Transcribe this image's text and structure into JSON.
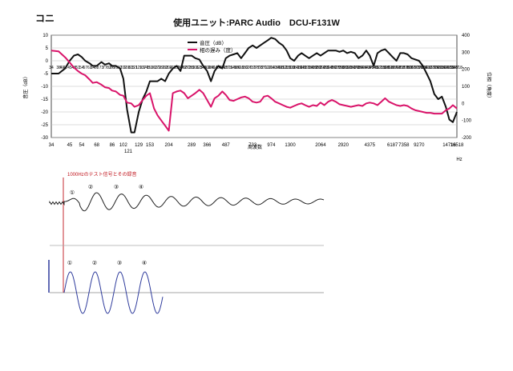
{
  "header": {
    "corner_label": "コニ",
    "title": "使用ユニット:PARC Audio　DCU-F131W"
  },
  "chart_data": [
    {
      "type": "line",
      "x_tick_labels_top": [
        "34",
        "38",
        "40",
        "42",
        "45",
        "48",
        "51",
        "54",
        "57",
        "61",
        "64",
        "68",
        "73",
        "77",
        "82",
        "86",
        "91",
        "97",
        "102",
        "108",
        "115",
        "121",
        "129",
        "137",
        "145",
        "153",
        "163",
        "172",
        "182",
        "193",
        "204",
        "217",
        "230",
        "244",
        "258",
        "273",
        "289",
        "306",
        "325",
        "345",
        "366",
        "388",
        "410",
        "435",
        "461",
        "487",
        "516",
        "548",
        "580",
        "615",
        "652",
        "690",
        "733",
        "777",
        "822",
        "871",
        "923",
        "974",
        "1034",
        "1098",
        "1163",
        "1231",
        "1300",
        "1381",
        "1466",
        "1548",
        "1633",
        "1734",
        "1839",
        "1950",
        "2064",
        "2188",
        "2318",
        "2456",
        "2605",
        "2758",
        "2920",
        "3096",
        "3283",
        "3478",
        "3686",
        "3906",
        "4143",
        "4375",
        "4645",
        "4921",
        "5218",
        "5526",
        "5858",
        "6187",
        "6568",
        "6958",
        "7358",
        "7789",
        "8269",
        "8770",
        "9270",
        "9826",
        "10417",
        "11022",
        "11700",
        "12418",
        "13141",
        "13950",
        "14716",
        "15547",
        "16518"
      ],
      "x_tick_labels": [
        "34",
        "45",
        "54",
        "68",
        "86",
        "102",
        "129",
        "153",
        "204",
        "289",
        "366",
        "487",
        "733",
        "974",
        "1300",
        "2064",
        "2920",
        "4375",
        "6187",
        "7358",
        "9270",
        "14716",
        "16518"
      ],
      "x_tick_labels_lower": [
        "121"
      ],
      "xlabel": "周波数",
      "x_unit": "Hz",
      "ylabel_left": "音圧（dB）",
      "ylabel_right": "位相（角度）",
      "ylim_left": [
        -30,
        10
      ],
      "yticks_left": [
        10,
        5,
        0,
        -5,
        -10,
        -15,
        -20,
        -25,
        -30
      ],
      "ylim_right": [
        -200,
        400
      ],
      "yticks_right": [
        400,
        300,
        200,
        100,
        0,
        -100,
        -200
      ],
      "grid": true,
      "legend_position": "top-center",
      "series": [
        {
          "name": "音圧（dB）",
          "color": "#111111",
          "axis": "left",
          "x": [
            34,
            38,
            42,
            45,
            48,
            51,
            54,
            57,
            61,
            64,
            68,
            73,
            77,
            82,
            86,
            91,
            97,
            102,
            108,
            115,
            121,
            129,
            137,
            145,
            153,
            163,
            172,
            182,
            193,
            204,
            217,
            230,
            244,
            258,
            273,
            289,
            306,
            325,
            345,
            366,
            388,
            410,
            435,
            461,
            487,
            516,
            548,
            580,
            615,
            652,
            690,
            733,
            777,
            822,
            871,
            923,
            974,
            1034,
            1098,
            1163,
            1231,
            1300,
            1381,
            1466,
            1548,
            1633,
            1734,
            1839,
            1950,
            2064,
            2188,
            2318,
            2456,
            2605,
            2758,
            2920,
            3096,
            3283,
            3478,
            3686,
            3906,
            4143,
            4375,
            4645,
            4921,
            5218,
            5526,
            5858,
            6187,
            6568,
            6958,
            7358,
            7789,
            8269,
            8770,
            9270,
            9826,
            10417,
            11022,
            11700,
            12418,
            13141,
            13950,
            14716,
            15547,
            16518
          ],
          "values": [
            -5,
            -5,
            -3,
            0,
            2,
            2.5,
            1.5,
            0,
            -1,
            -2,
            -2,
            -0.5,
            -1.5,
            -1,
            -2,
            -2,
            -3,
            -7,
            -19,
            -28,
            -28,
            -20,
            -15,
            -12,
            -8,
            -8,
            -8,
            -7,
            -8,
            -5,
            -3,
            -2,
            -4,
            2,
            2,
            2,
            1,
            0.5,
            -2,
            -4,
            -8,
            -4,
            -2,
            -3,
            1,
            2,
            2.5,
            3,
            1,
            3,
            5,
            6,
            5,
            6,
            7,
            8,
            9,
            8.5,
            7,
            6,
            4,
            1,
            0,
            2,
            3,
            2,
            1,
            2,
            3,
            2,
            3,
            4,
            4,
            4,
            3.5,
            4,
            3,
            3.5,
            3,
            1,
            2,
            4,
            2,
            -2,
            3,
            4,
            4.5,
            3,
            1.5,
            0,
            3,
            3,
            2.5,
            1,
            0.5,
            0,
            -2,
            -5,
            -8,
            -13,
            -15,
            -14,
            -18,
            -23,
            -24,
            -20
          ]
        },
        {
          "name": "相の遅み（度）",
          "color": "#d9146a",
          "axis": "right",
          "x": [
            34,
            38,
            42,
            45,
            48,
            51,
            54,
            57,
            61,
            64,
            68,
            73,
            77,
            82,
            86,
            91,
            97,
            102,
            108,
            115,
            121,
            129,
            137,
            145,
            153,
            163,
            172,
            182,
            193,
            204,
            217,
            230,
            244,
            258,
            273,
            289,
            306,
            325,
            345,
            366,
            388,
            410,
            435,
            461,
            487,
            516,
            548,
            580,
            615,
            652,
            690,
            733,
            777,
            822,
            871,
            923,
            974,
            1034,
            1098,
            1163,
            1231,
            1300,
            1381,
            1466,
            1548,
            1633,
            1734,
            1839,
            1950,
            2064,
            2188,
            2318,
            2456,
            2605,
            2758,
            2920,
            3096,
            3283,
            3478,
            3686,
            3906,
            4143,
            4375,
            4645,
            4921,
            5218,
            5526,
            5858,
            6187,
            6568,
            6958,
            7358,
            7789,
            8269,
            8770,
            9270,
            9826,
            10417,
            11022,
            11700,
            12418,
            13141,
            13950,
            14716,
            15547,
            16518
          ],
          "values": [
            310,
            305,
            270,
            240,
            210,
            190,
            175,
            165,
            140,
            120,
            125,
            110,
            95,
            90,
            75,
            70,
            50,
            45,
            5,
            0,
            -20,
            -10,
            20,
            45,
            60,
            -30,
            -70,
            -100,
            -130,
            -160,
            60,
            70,
            75,
            60,
            30,
            45,
            60,
            80,
            60,
            20,
            -20,
            30,
            45,
            70,
            50,
            20,
            15,
            25,
            35,
            40,
            30,
            10,
            5,
            10,
            40,
            45,
            30,
            10,
            0,
            -10,
            -20,
            -25,
            -15,
            -5,
            0,
            -10,
            -20,
            -10,
            -15,
            5,
            -10,
            10,
            20,
            10,
            -5,
            -10,
            -15,
            -20,
            -15,
            -10,
            -15,
            0,
            5,
            0,
            -10,
            10,
            30,
            10,
            0,
            -10,
            -15,
            -10,
            -15,
            -30,
            -40,
            -45,
            -50,
            -55,
            -55,
            -60,
            -60,
            -60,
            -40,
            -30,
            -10,
            -30
          ]
        }
      ]
    },
    {
      "type": "line",
      "title": "1000Hzのテスト信号とその録音",
      "markers": [
        "①",
        "②",
        "③",
        "④"
      ],
      "series": [
        {
          "name": "",
          "color": "#222222",
          "description_values": "recorded response waveform"
        }
      ]
    },
    {
      "type": "line",
      "markers": [
        "①",
        "②",
        "③",
        "④"
      ],
      "series": [
        {
          "name": "",
          "color": "#2e3b9c",
          "description_values": "test signal"
        }
      ]
    }
  ]
}
